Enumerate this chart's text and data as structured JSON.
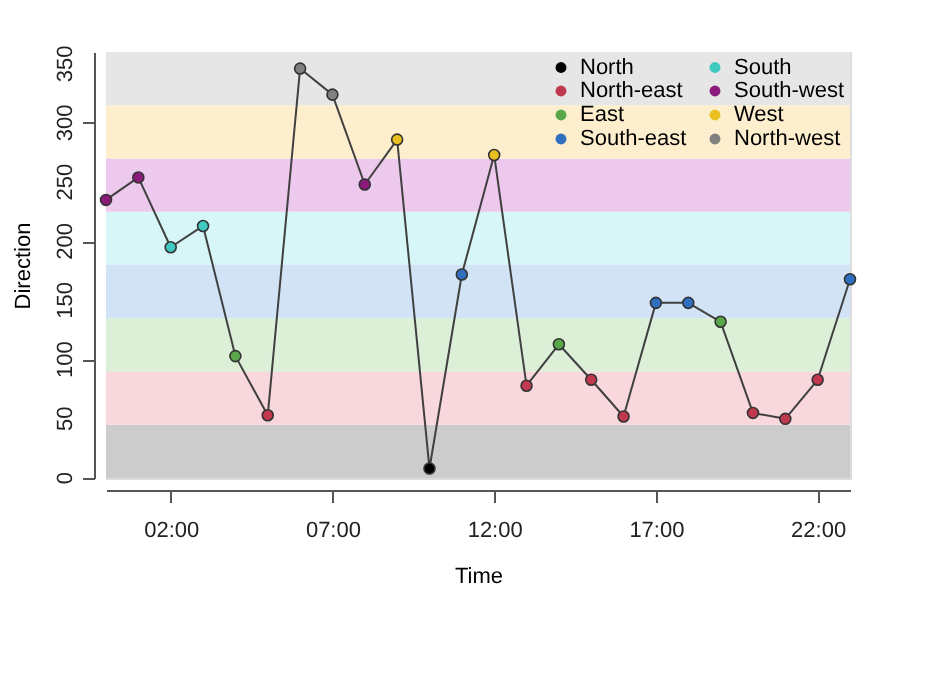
{
  "chart_data": {
    "type": "scatter",
    "xlabel": "Time",
    "ylabel": "Direction",
    "xlim": [
      0,
      23
    ],
    "ylim": [
      0,
      360
    ],
    "xticks": [
      {
        "value": 2,
        "label": "02:00"
      },
      {
        "value": 7,
        "label": "07:00"
      },
      {
        "value": 12,
        "label": "12:00"
      },
      {
        "value": 17,
        "label": "17:00"
      },
      {
        "value": 22,
        "label": "22:00"
      }
    ],
    "yticks": [
      0,
      50,
      100,
      150,
      200,
      250,
      300,
      350
    ],
    "grid": false,
    "legend": "top right",
    "bands": [
      {
        "axis": "y",
        "from": 0,
        "to": 45,
        "color": "#cccccc"
      },
      {
        "axis": "y",
        "from": 45,
        "to": 90,
        "color": "#f8d7dd"
      },
      {
        "axis": "y",
        "from": 90,
        "to": 135,
        "color": "#dcf0d8"
      },
      {
        "axis": "y",
        "from": 135,
        "to": 180,
        "color": "#d3e3f6"
      },
      {
        "axis": "y",
        "from": 180,
        "to": 225,
        "color": "#d6f6f7"
      },
      {
        "axis": "y",
        "from": 225,
        "to": 270,
        "color": "#edc9ed"
      },
      {
        "axis": "y",
        "from": 270,
        "to": 315,
        "color": "#fdefce"
      },
      {
        "axis": "y",
        "from": 315,
        "to": 360,
        "color": "#e6e6e6"
      }
    ],
    "series": [
      {
        "type": "line",
        "color": "#404040",
        "marker": "none",
        "line_style": "solid",
        "x": [
          0,
          1,
          2,
          3,
          4,
          5,
          6,
          7,
          8,
          9,
          10,
          11,
          12,
          13,
          14,
          15,
          16,
          17,
          18,
          19,
          20,
          21,
          22,
          23
        ],
        "values": [
          235,
          254,
          195,
          213,
          103,
          53,
          346,
          324,
          248,
          286,
          8,
          172,
          273,
          78,
          113,
          83,
          52,
          148,
          148,
          132,
          55,
          50,
          83,
          168
        ]
      },
      {
        "name": "North",
        "color": "#000000",
        "marker": "circle",
        "x": [
          10
        ],
        "values": [
          8
        ]
      },
      {
        "name": "North-east",
        "color": "#c0394f",
        "marker": "circle",
        "x": [
          5,
          13,
          15,
          16,
          20,
          21,
          22
        ],
        "values": [
          53,
          78,
          83,
          52,
          55,
          50,
          83
        ]
      },
      {
        "name": "East",
        "color": "#5aa74a",
        "marker": "circle",
        "x": [
          4,
          14,
          19
        ],
        "values": [
          103,
          113,
          132
        ]
      },
      {
        "name": "South-east",
        "color": "#2e6fbf",
        "marker": "circle",
        "x": [
          11,
          17,
          18,
          23
        ],
        "values": [
          172,
          148,
          148,
          168
        ]
      },
      {
        "name": "South",
        "color": "#40c9c0",
        "marker": "circle",
        "x": [
          2,
          3
        ],
        "values": [
          195,
          213
        ]
      },
      {
        "name": "South-west",
        "color": "#8b1a7a",
        "marker": "circle",
        "x": [
          0,
          1,
          8
        ],
        "values": [
          235,
          254,
          248
        ]
      },
      {
        "name": "West",
        "color": "#e8c01f",
        "marker": "circle",
        "x": [
          9,
          12
        ],
        "values": [
          286,
          273
        ]
      },
      {
        "name": "North-west",
        "color": "#808080",
        "marker": "circle",
        "x": [
          6,
          7
        ],
        "values": [
          346,
          324
        ]
      }
    ]
  }
}
